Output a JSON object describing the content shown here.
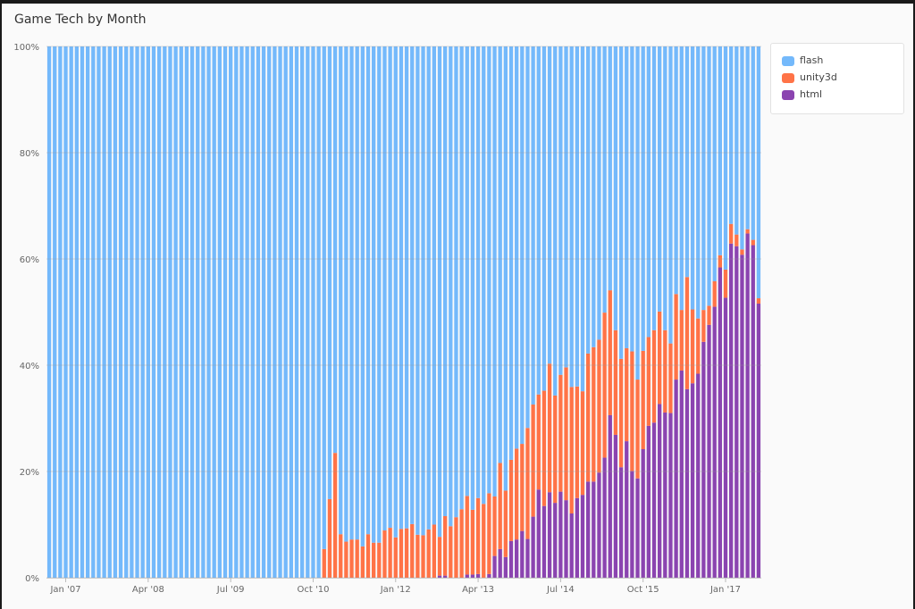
{
  "chart_data": {
    "type": "bar",
    "stacked": "percent",
    "title": "Game Tech by Month",
    "xlabel": "",
    "ylabel": "",
    "ylim": [
      0,
      100
    ],
    "yticks": [
      "0%",
      "20%",
      "40%",
      "60%",
      "80%",
      "100%"
    ],
    "xticks": [
      "Jan '07",
      "Apr '08",
      "Jul '09",
      "Oct '10",
      "Jan '12",
      "Apr '13",
      "Jul '14",
      "Oct '15",
      "Jan '17"
    ],
    "grid": true,
    "legend_position": "right",
    "categories": [
      "Oct '06",
      "Nov '06",
      "Dec '06",
      "Jan '07",
      "Feb '07",
      "Mar '07",
      "Apr '07",
      "May '07",
      "Jun '07",
      "Jul '07",
      "Aug '07",
      "Sep '07",
      "Oct '07",
      "Nov '07",
      "Dec '07",
      "Jan '08",
      "Feb '08",
      "Mar '08",
      "Apr '08",
      "May '08",
      "Jun '08",
      "Jul '08",
      "Aug '08",
      "Sep '08",
      "Oct '08",
      "Nov '08",
      "Dec '08",
      "Jan '09",
      "Feb '09",
      "Mar '09",
      "Apr '09",
      "May '09",
      "Jun '09",
      "Jul '09",
      "Aug '09",
      "Sep '09",
      "Oct '09",
      "Nov '09",
      "Dec '09",
      "Jan '10",
      "Feb '10",
      "Mar '10",
      "Apr '10",
      "May '10",
      "Jun '10",
      "Jul '10",
      "Aug '10",
      "Sep '10",
      "Oct '10",
      "Nov '10",
      "Dec '10",
      "Jan '11",
      "Feb '11",
      "Mar '11",
      "Apr '11",
      "May '11",
      "Jun '11",
      "Jul '11",
      "Aug '11",
      "Sep '11",
      "Oct '11",
      "Nov '11",
      "Dec '11",
      "Jan '12",
      "Feb '12",
      "Mar '12",
      "Apr '12",
      "May '12",
      "Jun '12",
      "Jul '12",
      "Aug '12",
      "Sep '12",
      "Oct '12",
      "Nov '12",
      "Dec '12",
      "Jan '13",
      "Feb '13",
      "Mar '13",
      "Apr '13",
      "May '13",
      "Jun '13",
      "Jul '13",
      "Aug '13",
      "Sep '13",
      "Oct '13",
      "Nov '13",
      "Dec '13",
      "Jan '14",
      "Feb '14",
      "Mar '14",
      "Apr '14",
      "May '14",
      "Jun '14",
      "Jul '14",
      "Aug '14",
      "Sep '14",
      "Oct '14",
      "Nov '14",
      "Dec '14",
      "Jan '15",
      "Feb '15",
      "Mar '15",
      "Apr '15",
      "May '15",
      "Jun '15",
      "Jul '15",
      "Aug '15",
      "Sep '15",
      "Oct '15",
      "Nov '15",
      "Dec '15",
      "Jan '16",
      "Feb '16",
      "Mar '16",
      "Apr '16",
      "May '16",
      "Jun '16",
      "Jul '16",
      "Aug '16",
      "Sep '16",
      "Oct '16",
      "Nov '16",
      "Dec '16",
      "Jan '17",
      "Feb '17",
      "Mar '17",
      "Apr '17",
      "May '17",
      "Jun '17",
      "Jul '17"
    ],
    "series": [
      {
        "name": "flash",
        "color": "#74b9fb",
        "values": [
          100,
          100,
          100,
          100,
          100,
          100,
          100,
          100,
          100,
          100,
          100,
          100,
          100,
          100,
          100,
          100,
          100,
          100,
          100,
          100,
          100,
          100,
          100,
          100,
          100,
          100,
          100,
          100,
          100,
          100,
          100,
          100,
          100,
          100,
          100,
          100,
          100,
          100,
          100,
          100,
          100,
          100,
          100,
          100,
          100,
          100,
          100,
          100,
          100,
          100,
          94.6,
          85.2,
          76.5,
          91.8,
          93.2,
          92.8,
          92.8,
          94.1,
          91.8,
          93.4,
          93.4,
          91.1,
          90.6,
          92.4,
          90.8,
          90.7,
          89.9,
          91.9,
          92.0,
          90.9,
          90.0,
          92.3,
          88.4,
          90.3,
          88.6,
          87.1,
          84.6,
          87.2,
          85.0,
          86.1,
          84.1,
          84.7,
          78.4,
          83.6,
          77.8,
          75.7,
          74.8,
          71.8,
          67.4,
          65.5,
          64.8,
          59.7,
          65.7,
          61.8,
          60.4,
          64.1,
          64.0,
          64.9,
          57.8,
          56.6,
          55.2,
          50.1,
          45.9,
          53.4,
          58.8,
          56.8,
          57.4,
          62.7,
          57.3,
          54.7,
          53.4,
          49.9,
          53.4,
          55.9,
          46.6,
          49.6,
          43.4,
          49.5,
          51.2,
          49.6,
          48.8,
          44.2,
          39.3,
          42.0,
          33.4,
          35.4,
          38.2,
          34.4,
          36.4,
          47.4
        ]
      },
      {
        "name": "unity3d",
        "color": "#ff7347",
        "values": [
          0,
          0,
          0,
          0,
          0,
          0,
          0,
          0,
          0,
          0,
          0,
          0,
          0,
          0,
          0,
          0,
          0,
          0,
          0,
          0,
          0,
          0,
          0,
          0,
          0,
          0,
          0,
          0,
          0,
          0,
          0,
          0,
          0,
          0,
          0,
          0,
          0,
          0,
          0,
          0,
          0,
          0,
          0,
          0,
          0,
          0,
          0,
          0,
          0,
          0,
          5.4,
          14.8,
          23.5,
          8.2,
          6.8,
          7.2,
          7.2,
          5.9,
          8.2,
          6.6,
          6.6,
          8.9,
          9.4,
          7.6,
          9.2,
          9.3,
          10.1,
          8.1,
          8.0,
          9.1,
          10.0,
          7.3,
          11.2,
          9.7,
          11.4,
          12.9,
          14.8,
          12.2,
          14.3,
          13.9,
          15.2,
          11.2,
          16.2,
          12.5,
          15.3,
          17.1,
          16.4,
          20.9,
          21.1,
          17.9,
          21.7,
          24.2,
          20.2,
          22.0,
          25.0,
          23.8,
          21.0,
          19.5,
          24.1,
          25.3,
          25.0,
          27.3,
          23.5,
          19.7,
          20.4,
          17.5,
          22.5,
          18.6,
          18.5,
          16.7,
          17.4,
          17.4,
          15.5,
          13.1,
          16.1,
          11.4,
          21.1,
          13.9,
          10.4,
          6.0,
          3.6,
          4.8,
          2.3,
          5.3,
          3.7,
          2.2,
          1.0,
          0.8,
          1.0,
          1.0
        ]
      },
      {
        "name": "html",
        "color": "#8b44b0",
        "values": [
          0,
          0,
          0,
          0,
          0,
          0,
          0,
          0,
          0,
          0,
          0,
          0,
          0,
          0,
          0,
          0,
          0,
          0,
          0,
          0,
          0,
          0,
          0,
          0,
          0,
          0,
          0,
          0,
          0,
          0,
          0,
          0,
          0,
          0,
          0,
          0,
          0,
          0,
          0,
          0,
          0,
          0,
          0,
          0,
          0,
          0,
          0,
          0,
          0,
          0,
          0,
          0,
          0,
          0,
          0,
          0,
          0,
          0,
          0,
          0,
          0,
          0,
          0,
          0,
          0,
          0,
          0,
          0,
          0,
          0,
          0,
          0.4,
          0.4,
          0,
          0,
          0,
          0.6,
          0.6,
          0.7,
          0,
          0.7,
          4.1,
          5.4,
          3.9,
          6.9,
          7.2,
          8.8,
          7.3,
          11.5,
          16.6,
          13.5,
          16.1,
          14.1,
          16.2,
          14.6,
          12.1,
          15.0,
          15.6,
          18.1,
          18.1,
          19.8,
          22.6,
          30.6,
          26.9,
          20.8,
          25.7,
          20.1,
          18.7,
          24.2,
          28.6,
          29.2,
          32.7,
          31.1,
          31.0,
          37.3,
          39.0,
          35.5,
          36.6,
          38.4,
          44.4,
          47.6,
          51.0,
          58.4,
          52.7,
          62.9,
          62.4,
          60.8,
          64.8,
          62.6,
          51.6
        ]
      }
    ]
  }
}
